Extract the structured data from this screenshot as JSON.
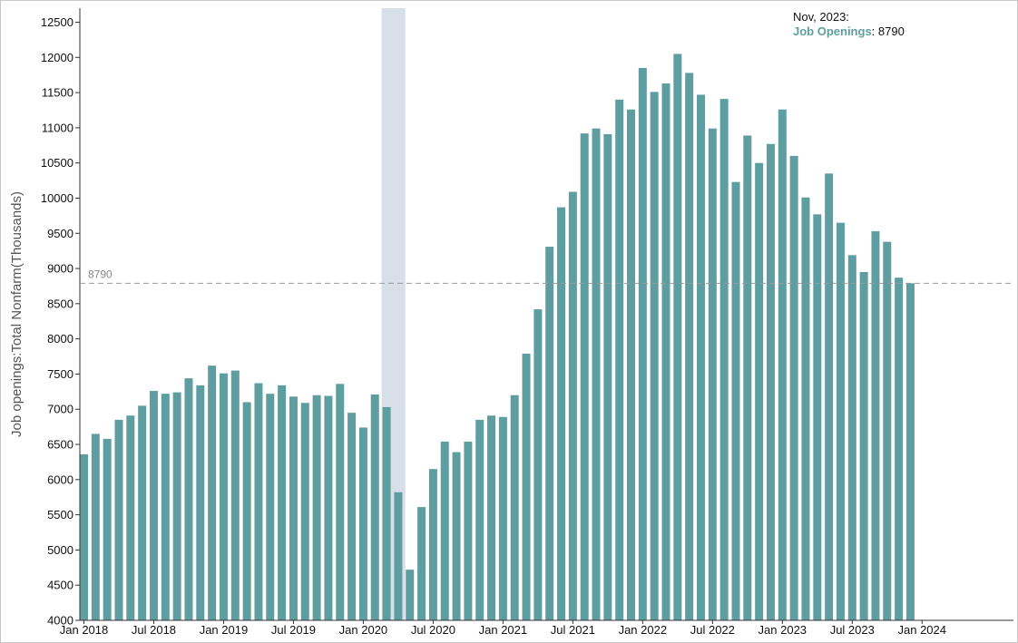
{
  "tooltip": {
    "date": "Nov, 2023:",
    "series_name": "Job Openings",
    "separator": ":",
    "value": "8790"
  },
  "colors": {
    "bar": "#5f9ea0",
    "recession": "#d7dfe9",
    "reference_line": "#999999"
  },
  "chart_data": {
    "type": "bar",
    "ylabel": "Job openings:Total Nonfarm(Thousands)",
    "ylim": [
      4000,
      12700
    ],
    "yticks": [
      4000,
      4500,
      5000,
      5500,
      6000,
      6500,
      7000,
      7500,
      8000,
      8500,
      9000,
      9500,
      10000,
      10500,
      11000,
      11500,
      12000,
      12500
    ],
    "xticks": [
      {
        "label": "Jan 2018",
        "index": 0
      },
      {
        "label": "Jul 2018",
        "index": 6
      },
      {
        "label": "Jan 2019",
        "index": 12
      },
      {
        "label": "Jul 2019",
        "index": 18
      },
      {
        "label": "Jan 2020",
        "index": 24
      },
      {
        "label": "Jul 2020",
        "index": 30
      },
      {
        "label": "Jan 2021",
        "index": 36
      },
      {
        "label": "Jul 2021",
        "index": 42
      },
      {
        "label": "Jan 2022",
        "index": 48
      },
      {
        "label": "Jul 2022",
        "index": 54
      },
      {
        "label": "Jan 2023",
        "index": 60
      },
      {
        "label": "Jul 2023",
        "index": 66
      },
      {
        "label": "Jan 2024",
        "index": 72
      }
    ],
    "start": "Jan 2018",
    "end": "Nov 2023",
    "recession": {
      "from_index": 26,
      "to_index": 27
    },
    "reference_line": {
      "value": 8790,
      "label": "8790"
    },
    "series": [
      {
        "name": "Job Openings",
        "values": [
          6360,
          6650,
          6580,
          6850,
          6910,
          7050,
          7260,
          7220,
          7240,
          7440,
          7340,
          7620,
          7510,
          7550,
          7100,
          7370,
          7220,
          7340,
          7180,
          7090,
          7200,
          7190,
          7360,
          6950,
          6740,
          7210,
          7030,
          5820,
          4720,
          5610,
          6150,
          6540,
          6390,
          6540,
          6850,
          6910,
          6890,
          7200,
          7790,
          8420,
          9310,
          9870,
          10090,
          10920,
          10990,
          10910,
          11400,
          11260,
          11850,
          11510,
          11630,
          12050,
          11780,
          11470,
          10990,
          11410,
          10230,
          10890,
          10500,
          10770,
          11260,
          10600,
          10010,
          9770,
          10350,
          9650,
          9190,
          8950,
          9530,
          9380,
          8870,
          8790
        ]
      }
    ]
  }
}
